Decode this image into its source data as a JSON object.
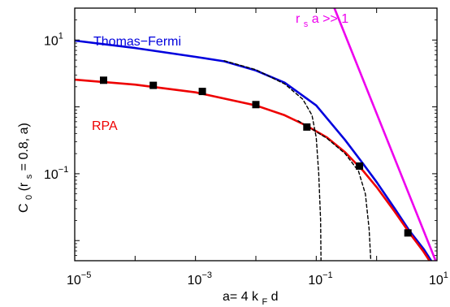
{
  "chart_data": {
    "type": "line",
    "xscale": "log",
    "yscale": "log",
    "xlim": [
      1e-05,
      10
    ],
    "ylim": [
      0.005,
      30
    ],
    "grid": false,
    "xlabel": {
      "main": "a= 4 k",
      "sub": "F",
      "tail": " d"
    },
    "ylabel": {
      "p1": "C",
      "s1": "0",
      "p2": "(r",
      "s2": "s",
      "p3": " = 0.8, a)"
    },
    "xticks": [
      {
        "value": 1e-05,
        "base": "10",
        "exp": "−5"
      },
      {
        "value": 0.001,
        "base": "10",
        "exp": "−3"
      },
      {
        "value": 0.1,
        "base": "10",
        "exp": "−1"
      },
      {
        "value": 10,
        "base": "10",
        "exp": "1"
      }
    ],
    "yticks": [
      {
        "value": 0.1,
        "base": "10",
        "exp": "−1"
      },
      {
        "value": 10,
        "base": "10",
        "exp": "1"
      }
    ],
    "annotations": {
      "thomas_fermi": {
        "text": "Thomas−Fermi",
        "color": "#0000dd"
      },
      "rpa": {
        "text": "RPA",
        "color": "#ee0000"
      },
      "asymptote": {
        "r": "r",
        "sub": "s",
        "rest": " a >> 1",
        "color": "#ee00ee"
      }
    },
    "series": [
      {
        "color": "#0000dd",
        "style": "solid",
        "points": [
          [
            1e-05,
            9.8
          ],
          [
            0.0001,
            7.6
          ],
          [
            0.001,
            5.6
          ],
          [
            0.003,
            4.8
          ],
          [
            0.01,
            3.5
          ],
          [
            0.03,
            2.3
          ],
          [
            0.1,
            1.05
          ],
          [
            0.3,
            0.32
          ],
          [
            0.6,
            0.14
          ],
          [
            1,
            0.075
          ],
          [
            2,
            0.03
          ],
          [
            3.5,
            0.014
          ],
          [
            6,
            0.0075
          ],
          [
            8,
            0.005
          ]
        ]
      },
      {
        "color": "#ee0000",
        "style": "solid",
        "points": [
          [
            1e-05,
            2.55
          ],
          [
            0.0001,
            2.15
          ],
          [
            0.001,
            1.65
          ],
          [
            0.01,
            1.05
          ],
          [
            0.03,
            0.75
          ],
          [
            0.07,
            0.52
          ],
          [
            0.15,
            0.35
          ],
          [
            0.3,
            0.21
          ],
          [
            0.6,
            0.11
          ],
          [
            1,
            0.063
          ],
          [
            2,
            0.027
          ],
          [
            3.5,
            0.013
          ],
          [
            6,
            0.0068
          ],
          [
            7.5,
            0.005
          ]
        ]
      },
      {
        "color": "#ee00ee",
        "style": "solid",
        "points": [
          [
            0.2,
            30
          ],
          [
            9.5,
            0.005
          ]
        ]
      },
      {
        "color": "#000000",
        "style": "dashed",
        "points": [
          [
            0.003,
            4.9
          ],
          [
            0.01,
            3.6
          ],
          [
            0.03,
            2.2
          ],
          [
            0.06,
            1.3
          ],
          [
            0.085,
            0.75
          ],
          [
            0.1,
            0.35
          ],
          [
            0.11,
            0.1
          ],
          [
            0.118,
            0.02
          ],
          [
            0.12,
            0.005
          ]
        ]
      },
      {
        "color": "#000000",
        "style": "dashed",
        "points": [
          [
            0.05,
            0.62
          ],
          [
            0.08,
            0.48
          ],
          [
            0.15,
            0.34
          ],
          [
            0.3,
            0.2
          ],
          [
            0.5,
            0.11
          ],
          [
            0.65,
            0.05
          ],
          [
            0.75,
            0.015
          ],
          [
            0.8,
            0.005
          ]
        ]
      },
      {
        "color": "#000000",
        "style": "markers",
        "points": [
          [
            3e-05,
            2.5
          ],
          [
            0.0002,
            2.1
          ],
          [
            0.0013,
            1.7
          ],
          [
            0.01,
            1.08
          ],
          [
            0.07,
            0.5
          ],
          [
            0.52,
            0.13
          ],
          [
            3.3,
            0.013
          ]
        ]
      }
    ]
  }
}
